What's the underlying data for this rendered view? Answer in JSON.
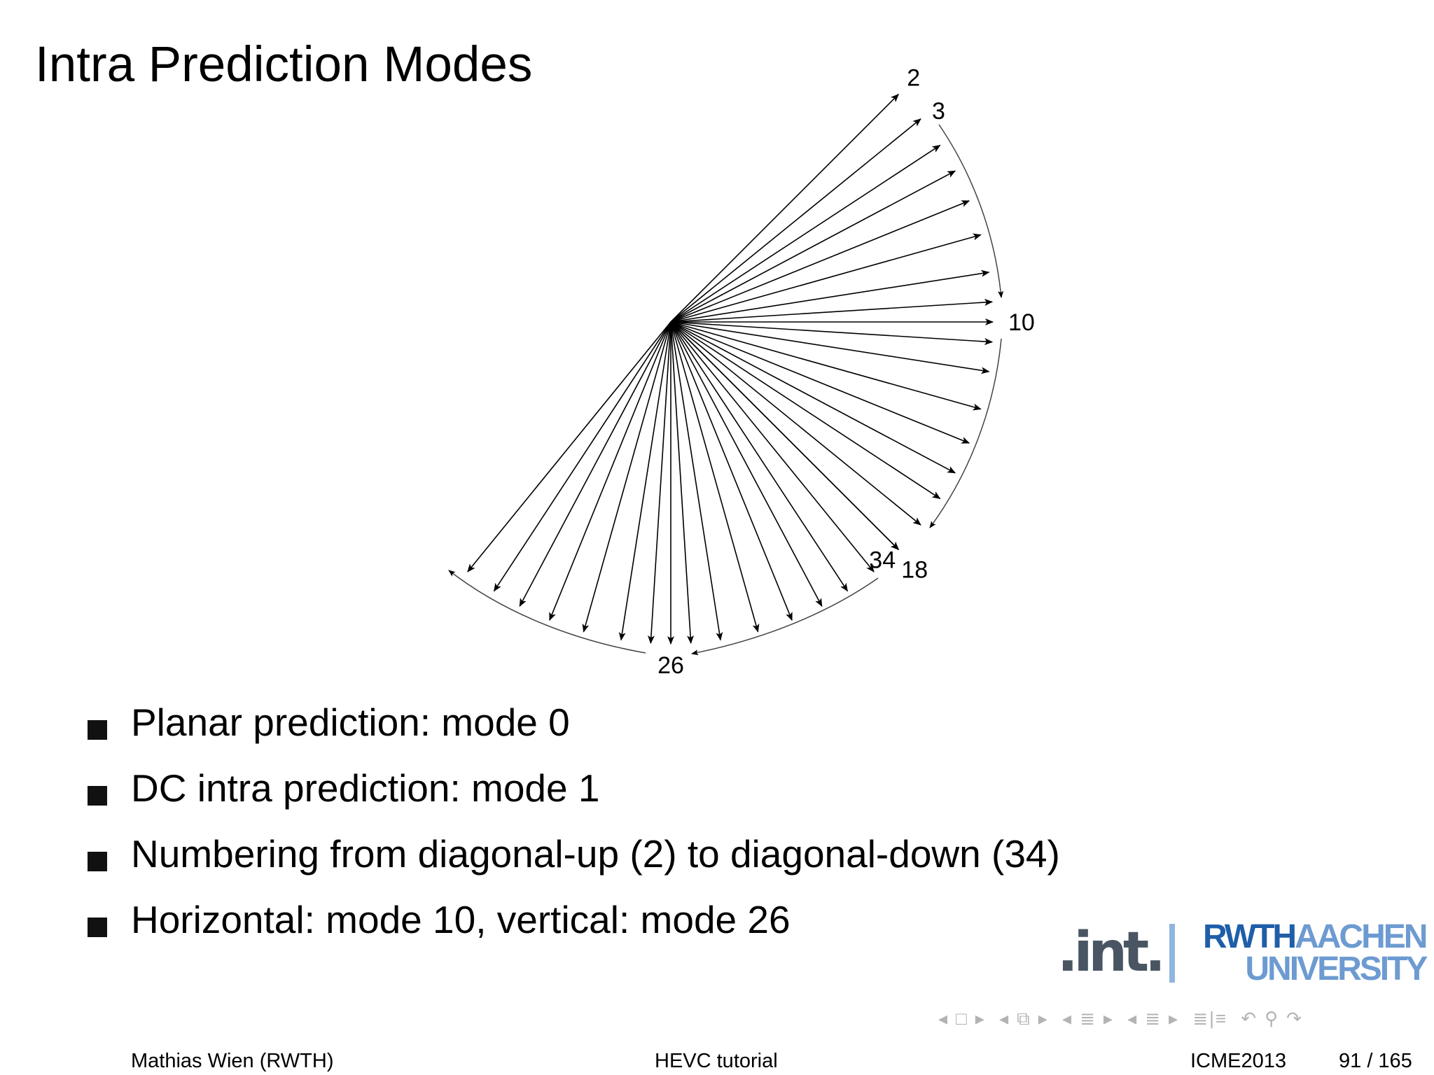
{
  "title": "Intra Prediction Modes",
  "diagram": {
    "mode_labels": [
      {
        "mode": 2,
        "text": "2"
      },
      {
        "mode": 3,
        "text": "3"
      },
      {
        "mode": 10,
        "text": "10"
      },
      {
        "mode": 18,
        "text": "18"
      },
      {
        "mode": 26,
        "text": "26"
      },
      {
        "mode": 34,
        "text": "34"
      }
    ],
    "angular_modes_first": 2,
    "angular_modes_last": 34,
    "displacements": [
      32,
      26,
      21,
      17,
      13,
      9,
      5,
      2,
      0,
      -2,
      -5,
      -9,
      -13,
      -17,
      -21,
      -26,
      -32,
      -26,
      -21,
      -17,
      -13,
      -9,
      -5,
      -2,
      0,
      2,
      5,
      9,
      13,
      17,
      21,
      26,
      32
    ]
  },
  "bullets": [
    "Planar prediction: mode 0",
    "DC intra prediction: mode 1",
    "Numbering from diagonal-up (2) to diagonal-down (34)",
    "Horizontal: mode 10, vertical: mode 26"
  ],
  "logos": {
    "int_text": ".int.",
    "rwth_text": "RWTH",
    "aachen_text": "AACHEN",
    "university_text": "UNIVERSITY"
  },
  "nav_icons": [
    "nav-prev-frame",
    "nav-frame",
    "nav-next-frame",
    "nav-prev-subsection",
    "nav-subsection",
    "nav-next-subsection",
    "nav-prev-section",
    "nav-section",
    "nav-next-section",
    "nav-prev-toc",
    "nav-toc",
    "nav-next-toc",
    "nav-appendix",
    "nav-back",
    "nav-search",
    "nav-forward"
  ],
  "footer": {
    "author": "Mathias Wien  (RWTH)",
    "talk_title": "HEVC tutorial",
    "conference": "ICME2013",
    "page": "91 / 165"
  }
}
